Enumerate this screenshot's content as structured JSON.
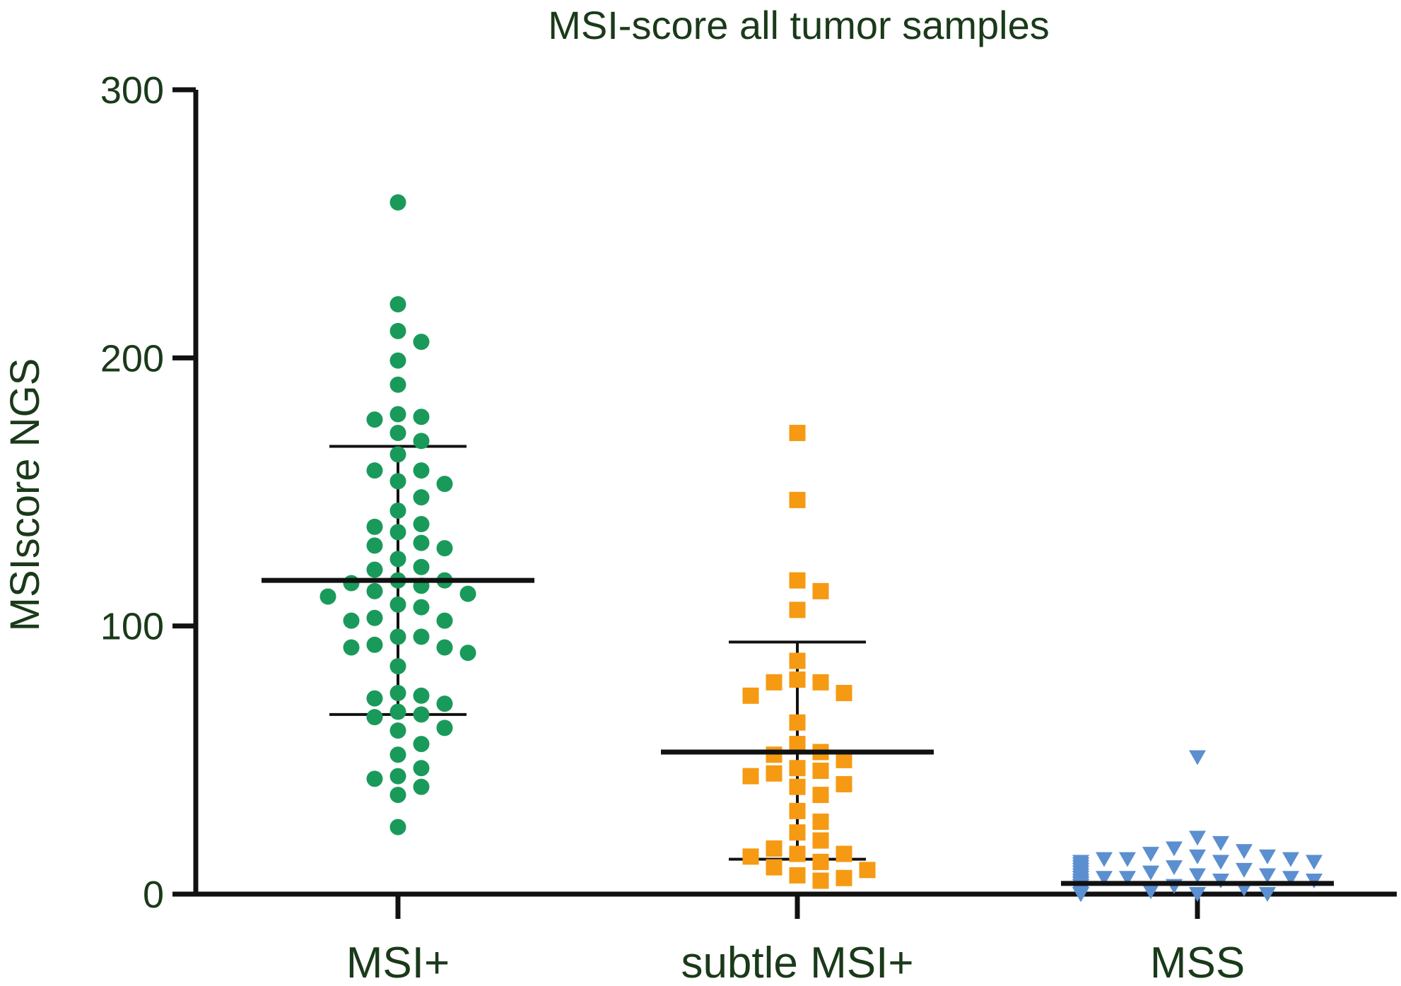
{
  "chart_data": {
    "type": "scatter",
    "title": "MSI-score all tumor samples",
    "xlabel": "",
    "ylabel": "MSIscore NGS",
    "ylim": [
      0,
      300
    ],
    "yticks": [
      0,
      100,
      200,
      300
    ],
    "yticklabels": [
      "0",
      "100",
      "200",
      "300"
    ],
    "categories": [
      "MSI+",
      "subtle MSI+",
      "MSS"
    ],
    "colors": {
      "MSI+": "#1a9a5a",
      "subtle MSI+": "#f59a12",
      "MSS": "#5b8fd0",
      "axis": "#111111",
      "text": "#1a3a1a"
    },
    "series": [
      {
        "name": "MSI+",
        "marker": "circle",
        "mean": 117,
        "sd_low": 67,
        "sd_high": 167,
        "values": [
          258,
          220,
          210,
          206,
          199,
          190,
          179,
          178,
          177,
          172,
          169,
          164,
          158,
          158,
          154,
          153,
          148,
          143,
          138,
          137,
          135,
          131,
          130,
          129,
          125,
          122,
          121,
          117,
          117,
          116,
          115,
          113,
          112,
          111,
          108,
          107,
          103,
          102,
          102,
          96,
          96,
          93,
          92,
          92,
          90,
          85,
          75,
          74,
          73,
          71,
          68,
          67,
          66,
          62,
          61,
          56,
          52,
          47,
          44,
          43,
          40,
          37,
          25
        ]
      },
      {
        "name": "subtle MSI+",
        "marker": "square",
        "mean": 53,
        "sd_low": 13,
        "sd_high": 94,
        "values": [
          172,
          147,
          117,
          113,
          106,
          87,
          80,
          79,
          79,
          75,
          74,
          64,
          56,
          53,
          52,
          50,
          47,
          46,
          45,
          44,
          41,
          40,
          37,
          31,
          27,
          23,
          20,
          17,
          15,
          15,
          14,
          12,
          10,
          9,
          7,
          6,
          5
        ]
      },
      {
        "name": "MSS",
        "marker": "triangle-down",
        "mean": 4,
        "sd_low": 0,
        "sd_high": 0,
        "values": [
          51,
          21,
          19,
          17,
          16,
          15,
          14,
          14,
          13,
          13,
          13,
          12,
          12,
          12,
          11,
          11,
          11,
          10,
          10,
          10,
          9,
          9,
          9,
          8,
          8,
          8,
          8,
          7,
          7,
          7,
          7,
          7,
          6,
          6,
          6,
          6,
          6,
          5,
          5,
          5,
          5,
          5,
          5,
          4,
          4,
          4,
          4,
          4,
          4,
          4,
          3,
          3,
          3,
          3,
          3,
          3,
          3,
          2,
          2,
          2,
          2,
          2,
          2,
          2,
          2,
          1,
          1,
          1,
          1,
          1,
          1,
          1,
          1,
          1,
          0,
          0,
          0,
          0,
          0,
          0,
          0,
          0,
          0
        ]
      }
    ]
  }
}
